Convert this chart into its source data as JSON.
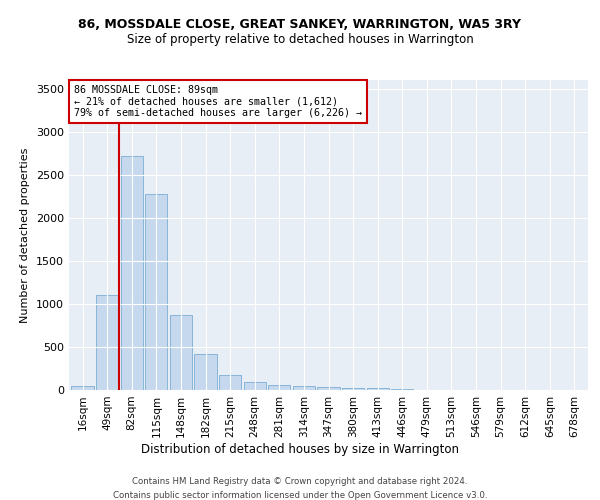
{
  "title": "86, MOSSDALE CLOSE, GREAT SANKEY, WARRINGTON, WA5 3RY",
  "subtitle": "Size of property relative to detached houses in Warrington",
  "xlabel": "Distribution of detached houses by size in Warrington",
  "ylabel": "Number of detached properties",
  "bar_color": "#c5d8ee",
  "bar_edge_color": "#7aadd4",
  "bin_labels": [
    "16sqm",
    "49sqm",
    "82sqm",
    "115sqm",
    "148sqm",
    "182sqm",
    "215sqm",
    "248sqm",
    "281sqm",
    "314sqm",
    "347sqm",
    "380sqm",
    "413sqm",
    "446sqm",
    "479sqm",
    "513sqm",
    "546sqm",
    "579sqm",
    "612sqm",
    "645sqm",
    "678sqm"
  ],
  "bar_heights": [
    45,
    1100,
    2720,
    2280,
    870,
    420,
    170,
    90,
    60,
    50,
    35,
    25,
    20,
    10,
    5,
    5,
    3,
    2,
    1,
    1,
    0
  ],
  "ylim": [
    0,
    3600
  ],
  "yticks": [
    0,
    500,
    1000,
    1500,
    2000,
    2500,
    3000,
    3500
  ],
  "property_bin_index": 2,
  "property_line_label": "86 MOSSDALE CLOSE: 89sqm",
  "annotation_line1": "← 21% of detached houses are smaller (1,612)",
  "annotation_line2": "79% of semi-detached houses are larger (6,226) →",
  "annotation_box_edge_color": "#cc0000",
  "red_line_color": "#cc0000",
  "bg_color": "#e8eef5",
  "footer_line1": "Contains HM Land Registry data © Crown copyright and database right 2024.",
  "footer_line2": "Contains public sector information licensed under the Open Government Licence v3.0."
}
